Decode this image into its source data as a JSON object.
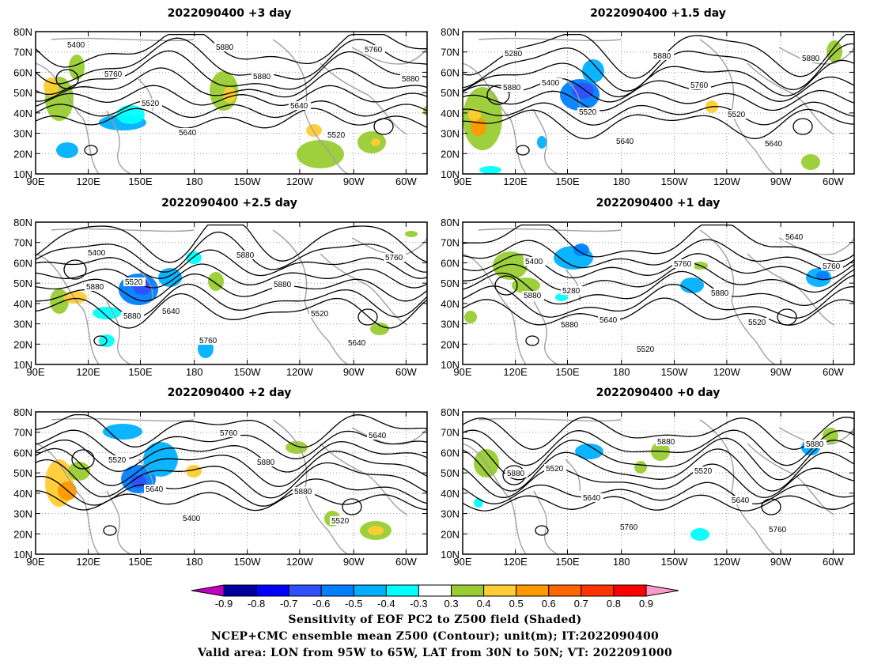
{
  "panels": [
    {
      "title": "2022090400  +3 day",
      "lead_days": 3,
      "contour_labels": [
        "5400",
        "5760",
        "5520",
        "5640",
        "5880",
        "5880",
        "5640",
        "5520",
        "5760",
        "5880"
      ]
    },
    {
      "title": "2022090400  +1.5 day",
      "lead_days": 1.5,
      "contour_labels": [
        "5280",
        "5400",
        "5520",
        "5640",
        "5880",
        "5760",
        "5520",
        "5640",
        "5880",
        "5880"
      ]
    },
    {
      "title": "2022090400  +2.5 day",
      "lead_days": 2.5,
      "contour_labels": [
        "5400",
        "5520",
        "5640",
        "5760",
        "5880",
        "5880",
        "5520",
        "5640",
        "5760",
        "5880",
        "5880"
      ]
    },
    {
      "title": "2022090400  +1 day",
      "lead_days": 1,
      "contour_labels": [
        "5400",
        "5280",
        "5640",
        "5520",
        "5760",
        "5880",
        "5520",
        "5640",
        "5760",
        "5880",
        "5880"
      ]
    },
    {
      "title": "2022090400  +2 day",
      "lead_days": 2,
      "contour_labels": [
        "5520",
        "5640",
        "5400",
        "5760",
        "5880",
        "5880",
        "5520",
        "5640"
      ]
    },
    {
      "title": "2022090400  +0 day",
      "lead_days": 0,
      "contour_labels": [
        "5520",
        "5640",
        "5760",
        "5880",
        "5520",
        "5640",
        "5760",
        "5880",
        "5880"
      ]
    }
  ],
  "lon_ticks": [
    "90E",
    "120E",
    "150E",
    "180",
    "150W",
    "120W",
    "90W",
    "60W"
  ],
  "lat_ticks": [
    "10N",
    "20N",
    "30N",
    "40N",
    "50N",
    "60N",
    "70N",
    "80N"
  ],
  "colorbar": {
    "tick_labels": [
      "-0.9",
      "-0.8",
      "-0.7",
      "-0.6",
      "-0.5",
      "-0.4",
      "-0.3",
      "0.3",
      "0.4",
      "0.5",
      "0.6",
      "0.7",
      "0.8",
      "0.9"
    ],
    "colors": [
      "#c000c0",
      "#0000a0",
      "#0000ff",
      "#3050ff",
      "#0080ff",
      "#00b0ff",
      "#00ffff",
      "#ffffff",
      "#99cc33",
      "#ffcc33",
      "#ff9900",
      "#ff6600",
      "#ff3300",
      "#ff0000",
      "#ff99cc"
    ]
  },
  "caption": {
    "line1": "Sensitivity of EOF PC2 to Z500 field (Shaded)",
    "line2": "NCEP+CMC ensemble mean Z500 (Contour); unit(m); IT:2022090400",
    "line3": "Valid area: LON from 95W to 65W, LAT from 30N to 50N; VT: 2022091000"
  },
  "map": {
    "lon_range": [
      "90E",
      "60W"
    ],
    "lat_range": [
      "10N",
      "80N"
    ],
    "contour_color": "#000000",
    "coast_color": "#a0a0a0",
    "grid": "dotted"
  }
}
